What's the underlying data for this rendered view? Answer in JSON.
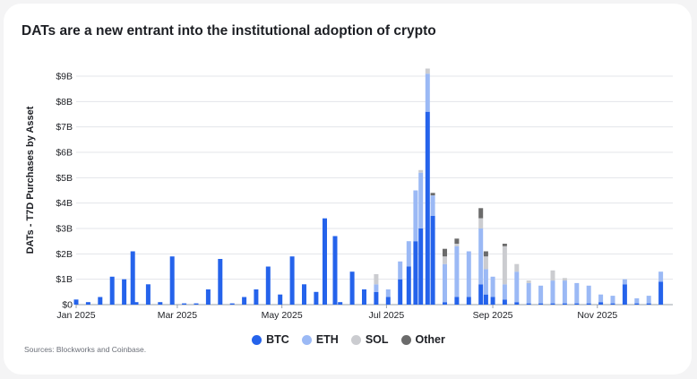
{
  "chart_data": {
    "type": "bar",
    "stacked": true,
    "title": "DATs are a new entrant into the institutional adoption of crypto",
    "ylabel": "DATs - T7D Purchases by Asset",
    "xlabel": "",
    "ylim": [
      0,
      9
    ],
    "yticks": [
      "$0",
      "$1B",
      "$2B",
      "$3B",
      "$4B",
      "$5B",
      "$6B",
      "$7B",
      "$8B",
      "$9B"
    ],
    "xticks": [
      "Jan 2025",
      "Mar 2025",
      "May 2025",
      "Jul 2025",
      "Sep 2025",
      "Nov 2025"
    ],
    "grid": true,
    "legend_position": "bottom",
    "unit": "$B",
    "series": [
      {
        "name": "BTC",
        "color": "#2563eb",
        "points": [
          [
            "2025-01-01",
            0.2
          ],
          [
            "2025-01-08",
            0.1
          ],
          [
            "2025-01-15",
            0.3
          ],
          [
            "2025-01-22",
            1.1
          ],
          [
            "2025-01-29",
            1.0
          ],
          [
            "2025-02-03",
            2.1
          ],
          [
            "2025-02-05",
            0.1
          ],
          [
            "2025-02-12",
            0.8
          ],
          [
            "2025-02-19",
            0.1
          ],
          [
            "2025-02-26",
            1.9
          ],
          [
            "2025-03-05",
            0.05
          ],
          [
            "2025-03-12",
            0.05
          ],
          [
            "2025-03-19",
            0.6
          ],
          [
            "2025-03-26",
            1.8
          ],
          [
            "2025-04-02",
            0.05
          ],
          [
            "2025-04-09",
            0.3
          ],
          [
            "2025-04-16",
            0.6
          ],
          [
            "2025-04-23",
            1.5
          ],
          [
            "2025-04-30",
            0.4
          ],
          [
            "2025-05-07",
            1.9
          ],
          [
            "2025-05-14",
            0.8
          ],
          [
            "2025-05-21",
            0.5
          ],
          [
            "2025-05-26",
            3.4
          ],
          [
            "2025-06-01",
            2.7
          ],
          [
            "2025-06-04",
            0.1
          ],
          [
            "2025-06-11",
            1.3
          ],
          [
            "2025-06-18",
            0.6
          ],
          [
            "2025-06-25",
            0.5
          ],
          [
            "2025-07-02",
            0.3
          ],
          [
            "2025-07-09",
            1.0
          ],
          [
            "2025-07-14",
            1.5
          ],
          [
            "2025-07-18",
            2.5
          ],
          [
            "2025-07-21",
            3.0
          ],
          [
            "2025-07-25",
            7.6
          ],
          [
            "2025-07-28",
            3.5
          ],
          [
            "2025-08-04",
            0.1
          ],
          [
            "2025-08-11",
            0.3
          ],
          [
            "2025-08-18",
            0.3
          ],
          [
            "2025-08-25",
            0.8
          ],
          [
            "2025-08-28",
            0.4
          ],
          [
            "2025-09-01",
            0.3
          ],
          [
            "2025-09-08",
            0.2
          ],
          [
            "2025-09-15",
            0.1
          ],
          [
            "2025-09-22",
            0.05
          ],
          [
            "2025-09-29",
            0.05
          ],
          [
            "2025-10-06",
            0.05
          ],
          [
            "2025-10-13",
            0.05
          ],
          [
            "2025-10-20",
            0.05
          ],
          [
            "2025-10-27",
            0.05
          ],
          [
            "2025-11-03",
            0.1
          ],
          [
            "2025-11-10",
            0.05
          ],
          [
            "2025-11-17",
            0.8
          ],
          [
            "2025-11-24",
            0.05
          ],
          [
            "2025-12-01",
            0.05
          ],
          [
            "2025-12-08",
            0.9
          ]
        ]
      },
      {
        "name": "ETH",
        "color": "#9bb9f5",
        "points": [
          [
            "2025-06-25",
            0.3
          ],
          [
            "2025-07-02",
            0.3
          ],
          [
            "2025-07-09",
            0.7
          ],
          [
            "2025-07-14",
            1.0
          ],
          [
            "2025-07-18",
            2.0
          ],
          [
            "2025-07-21",
            2.2
          ],
          [
            "2025-07-25",
            1.5
          ],
          [
            "2025-07-28",
            0.8
          ],
          [
            "2025-08-04",
            1.5
          ],
          [
            "2025-08-11",
            2.0
          ],
          [
            "2025-08-18",
            1.8
          ],
          [
            "2025-08-25",
            2.2
          ],
          [
            "2025-08-28",
            1.0
          ],
          [
            "2025-09-01",
            0.8
          ],
          [
            "2025-09-08",
            0.6
          ],
          [
            "2025-09-15",
            1.2
          ],
          [
            "2025-09-22",
            0.8
          ],
          [
            "2025-09-29",
            0.7
          ],
          [
            "2025-10-06",
            0.9
          ],
          [
            "2025-10-13",
            0.9
          ],
          [
            "2025-10-20",
            0.8
          ],
          [
            "2025-10-27",
            0.7
          ],
          [
            "2025-11-03",
            0.3
          ],
          [
            "2025-11-10",
            0.3
          ],
          [
            "2025-11-17",
            0.2
          ],
          [
            "2025-11-24",
            0.2
          ],
          [
            "2025-12-01",
            0.3
          ],
          [
            "2025-12-08",
            0.4
          ]
        ]
      },
      {
        "name": "SOL",
        "color": "#cbccd0",
        "points": [
          [
            "2025-06-25",
            0.4
          ],
          [
            "2025-07-21",
            0.1
          ],
          [
            "2025-07-25",
            0.2
          ],
          [
            "2025-08-04",
            0.3
          ],
          [
            "2025-08-11",
            0.1
          ],
          [
            "2025-08-25",
            0.4
          ],
          [
            "2025-08-28",
            0.5
          ],
          [
            "2025-09-08",
            1.5
          ],
          [
            "2025-09-15",
            0.3
          ],
          [
            "2025-09-22",
            0.1
          ],
          [
            "2025-10-06",
            0.4
          ],
          [
            "2025-10-13",
            0.1
          ]
        ]
      },
      {
        "name": "Other",
        "color": "#6b6b6b",
        "points": [
          [
            "2025-07-28",
            0.1
          ],
          [
            "2025-08-04",
            0.3
          ],
          [
            "2025-08-11",
            0.2
          ],
          [
            "2025-08-25",
            0.4
          ],
          [
            "2025-08-28",
            0.2
          ],
          [
            "2025-09-08",
            0.1
          ]
        ]
      }
    ]
  },
  "footer": {
    "sources": "Sources: Blockworks and Coinbase."
  }
}
